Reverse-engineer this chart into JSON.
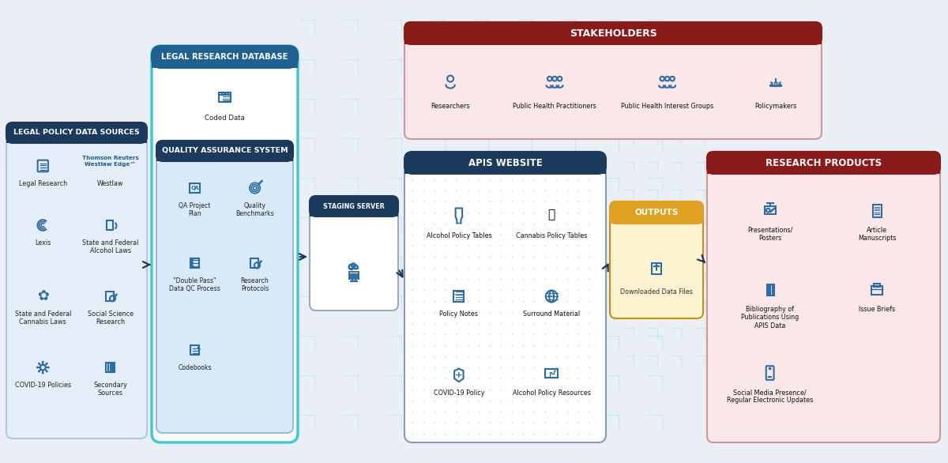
{
  "bg_color": "#eaeff6",
  "dark_blue": "#1b3a5c",
  "medium_blue": "#1e6090",
  "light_blue": "#4a90c4",
  "cyan": "#3ec9d6",
  "red": "#8b1a1a",
  "light_red": "#fae8e8",
  "gold": "#e0a020",
  "light_gold": "#fdf3d0",
  "white": "#ffffff",
  "icon_blue": "#2e6da4",
  "panel1_title": "LEGAL POLICY DATA SOURCES",
  "panel2_title": "LEGAL RESEARCH DATABASE",
  "panel2_sub_title": "QUALITY ASSURANCE SYSTEM",
  "panel2_coded": "Coded Data",
  "panel3_title": "STAGING SERVER",
  "panel4_title": "STAKEHOLDERS",
  "panel4_items": [
    "Researchers",
    "Public Health Practitioners",
    "Public Health Interest Groups",
    "Policymakers"
  ],
  "panel5_title": "APIS WEBSITE",
  "panel5_items": [
    [
      "Alcohol Policy Tables",
      "Cannabis Policy Tables"
    ],
    [
      "Policy Notes",
      "Surround Material"
    ],
    [
      "COVID-19 Policy",
      "Alcohol Policy Resources"
    ]
  ],
  "outputs_title": "OUTPUTS",
  "outputs_item": "Downloaded Data Files",
  "panel6_title": "RESEARCH PRODUCTS",
  "panel6_items": [
    [
      "Presentations/\nPosters",
      "Article\nManuscripts"
    ],
    [
      "Bibliography of\nPublications Using\nAPIS Data",
      "Issue Briefs"
    ],
    [
      "Social Media Presence/\nRegular Electronic Updates",
      ""
    ]
  ],
  "panel1_row1": [
    "Legal Research",
    "Westlaw"
  ],
  "panel1_westlaw_logo": "Thomson Reuters\nWestlaw Edge™",
  "panel1_row2": [
    "Lexis",
    "State and Federal\nAlcohol Laws"
  ],
  "panel1_row3": [
    "State and Federal\nCannabis Laws",
    "Social Science\nResearch"
  ],
  "panel1_row4": [
    "COVID-19 Policies",
    "Secondary\nSources"
  ],
  "qa_items": [
    [
      "QA Project\nPlan",
      "Quality\nBenchmarks"
    ],
    [
      "\"Double Pass\"\nData QC Process",
      "Research\nProtocols"
    ],
    [
      "Codebooks",
      ""
    ]
  ]
}
